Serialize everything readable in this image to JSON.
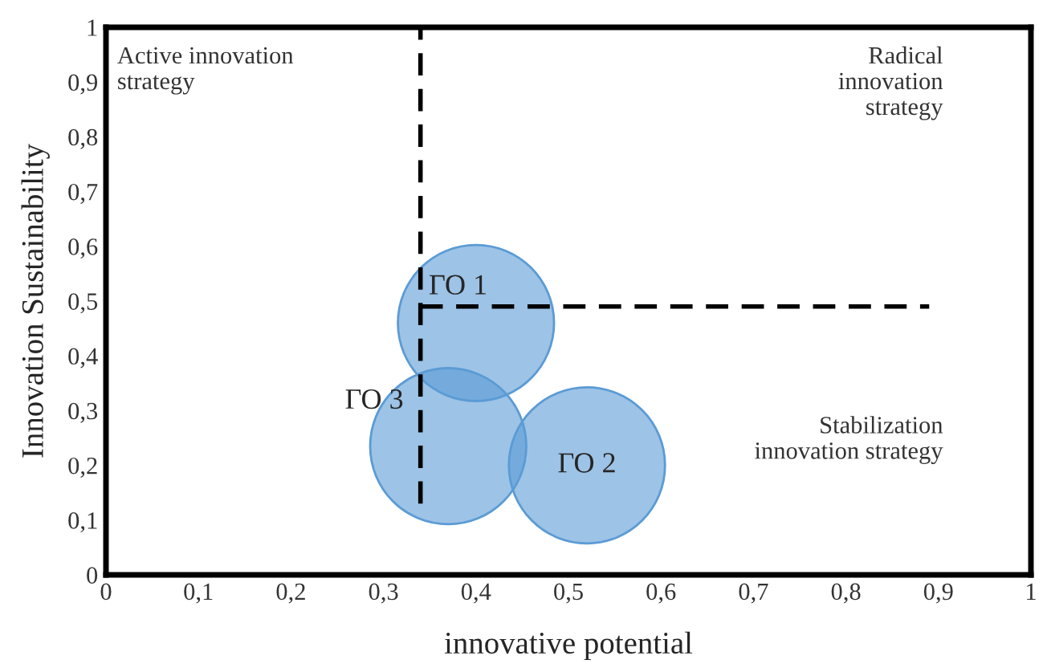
{
  "chart_data": {
    "type": "bubble",
    "xlabel": "innovative potential",
    "ylabel": "Innovation Sustainability",
    "series": [
      {
        "name": "ГО 1",
        "color": "#5b9bd5",
        "x": [
          0.4
        ],
        "values": [
          0.46
        ],
        "sizes": [
          1
        ]
      },
      {
        "name": "ГО 2",
        "color": "#5b9bd5",
        "x": [
          0.52
        ],
        "values": [
          0.2
        ],
        "sizes": [
          1
        ]
      },
      {
        "name": "ГО 3",
        "color": "#5b9bd5",
        "x": [
          0.37
        ],
        "values": [
          0.235
        ],
        "sizes": [
          1
        ]
      },
      {
        "type": "line",
        "color": "#000000",
        "line_style": "dashed",
        "x": [
          0.34,
          0.34
        ],
        "values": [
          0.13,
          1
        ]
      },
      {
        "type": "line",
        "color": "#000000",
        "line_style": "dashed",
        "x": [
          0.34,
          0.89
        ],
        "values": [
          0.49,
          0.49
        ]
      }
    ],
    "annotations": [
      "Active innovation\nstrategy",
      "Radical\ninnovation\nstrategy",
      "Stabilization\ninnovation strategy"
    ],
    "xlim": [
      0,
      1
    ],
    "ylim": [
      0,
      1
    ],
    "xticks": [
      0,
      {
        "value": 0.1,
        "label": "0,1"
      },
      {
        "value": 0.2,
        "label": "0,2"
      },
      {
        "value": 0.3,
        "label": "0,3"
      },
      {
        "value": 0.4,
        "label": "0,4"
      },
      {
        "value": 0.5,
        "label": "0,5"
      },
      {
        "value": 0.6,
        "label": "0,6"
      },
      {
        "value": 0.7,
        "label": "0,7"
      },
      {
        "value": 0.8,
        "label": "0,8"
      },
      {
        "value": 0.9,
        "label": "0,9"
      },
      1
    ],
    "yticks": [
      0,
      {
        "value": 0.1,
        "label": "0,1"
      },
      {
        "value": 0.2,
        "label": "0,2"
      },
      {
        "value": 0.3,
        "label": "0,3"
      },
      {
        "value": 0.4,
        "label": "0,4"
      },
      {
        "value": 0.5,
        "label": "0,5"
      },
      {
        "value": 0.6,
        "label": "0,6"
      },
      {
        "value": 0.7,
        "label": "0,7"
      },
      {
        "value": 0.8,
        "label": "0,8"
      },
      {
        "value": 0.9,
        "label": "0,9"
      },
      1
    ],
    "grid": false,
    "legend": false
  }
}
